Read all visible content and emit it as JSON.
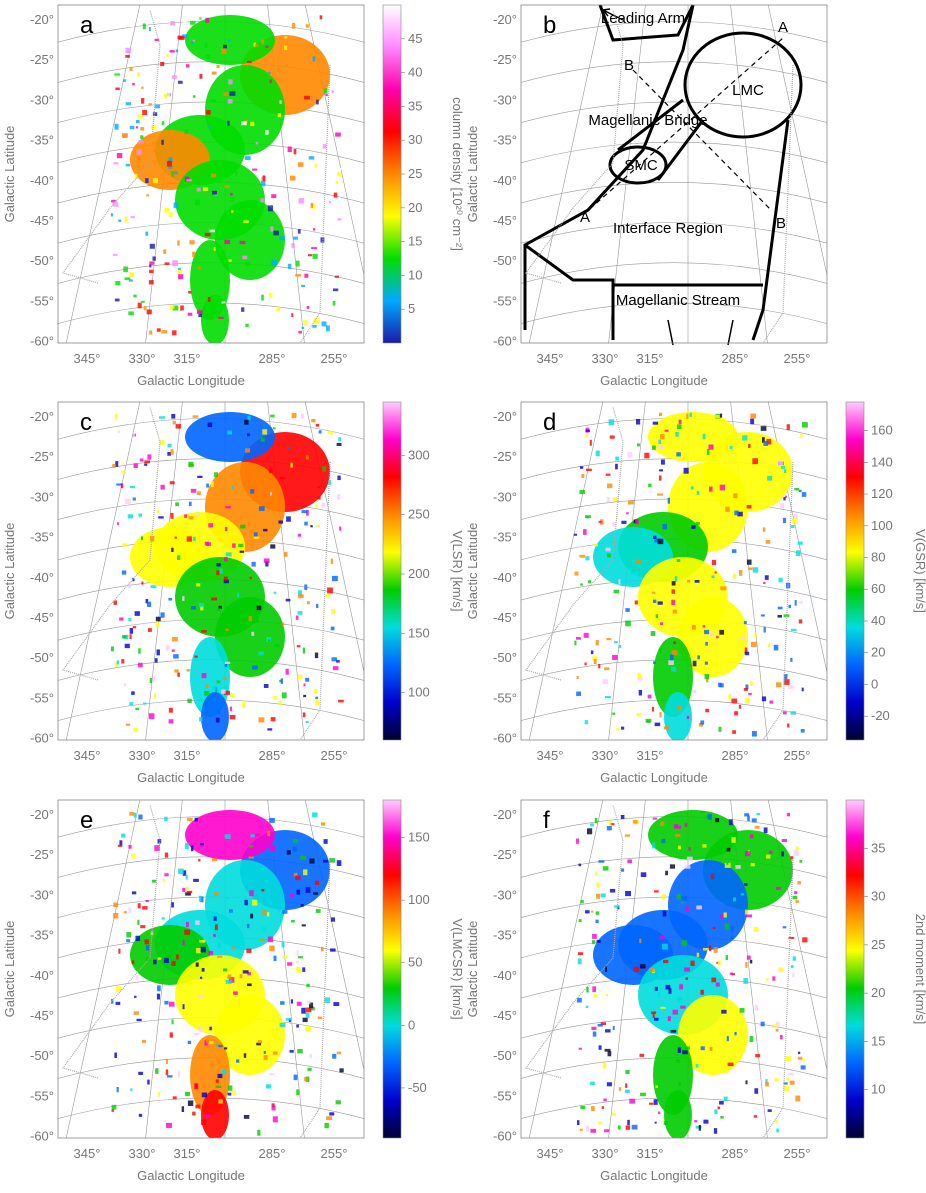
{
  "figure": {
    "x_axis_label": "Galactic Longitude",
    "y_axis_label": "Galactic Latitude",
    "lon_ticks": [
      "345°",
      "330°",
      "315°",
      "285°",
      "255°"
    ],
    "lat_ticks": [
      "-20°",
      "-25°",
      "-30°",
      "-35°",
      "-40°",
      "-45°",
      "-50°",
      "-55°",
      "-60°"
    ]
  },
  "chart_data": [
    {
      "type": "heatmap",
      "panel_label": "a",
      "quantity": "column density",
      "colorbar_label": "column density [10²⁰ cm⁻²]",
      "colorbar_ticks": [
        5,
        10,
        15,
        20,
        25,
        30,
        35,
        40,
        45
      ],
      "colorbar_range": [
        0,
        50
      ],
      "colorscale": [
        "#1a1aa8",
        "#00aaff",
        "#00dd00",
        "#ffff00",
        "#ff8800",
        "#ff0000",
        "#ff00aa",
        "#ff88ff",
        "#ffffff"
      ]
    },
    {
      "type": "diagram",
      "panel_label": "b",
      "regions": [
        "Leading Arm",
        "LMC",
        "Magellanic Bridge",
        "SMC",
        "Interface Region",
        "Magellanic Stream"
      ],
      "cut_labels": [
        "A",
        "B",
        "B",
        "A"
      ]
    },
    {
      "type": "heatmap",
      "panel_label": "c",
      "quantity": "V(LSR)",
      "colorbar_label": "V(LSR) [km/s]",
      "colorbar_ticks": [
        100,
        150,
        200,
        250,
        300
      ],
      "colorbar_range": [
        60,
        345
      ],
      "colorscale": [
        "#000030",
        "#0000cc",
        "#0066ff",
        "#00dddd",
        "#00cc00",
        "#ffff00",
        "#ff8800",
        "#ff0000",
        "#ff00cc",
        "#ffccff"
      ]
    },
    {
      "type": "heatmap",
      "panel_label": "d",
      "quantity": "V(GSR)",
      "colorbar_label": "V(GSR) [km/s]",
      "colorbar_ticks": [
        -20,
        0,
        20,
        40,
        60,
        80,
        100,
        120,
        140,
        160
      ],
      "colorbar_range": [
        -35,
        178
      ],
      "colorscale": [
        "#000030",
        "#0000cc",
        "#0066ff",
        "#00dddd",
        "#00cc00",
        "#ffff00",
        "#ff8800",
        "#ff0000",
        "#ff00cc",
        "#ffccff"
      ]
    },
    {
      "type": "heatmap",
      "panel_label": "e",
      "quantity": "V(LMCSR)",
      "colorbar_label": "V(LMCSR) [km/s]",
      "colorbar_ticks": [
        -50,
        0,
        50,
        100,
        150
      ],
      "colorbar_range": [
        -90,
        180
      ],
      "colorscale": [
        "#000030",
        "#0000cc",
        "#0066ff",
        "#00dddd",
        "#00cc00",
        "#ffff00",
        "#ff8800",
        "#ff0000",
        "#ff00cc",
        "#ffccff"
      ]
    },
    {
      "type": "heatmap",
      "panel_label": "f",
      "quantity": "2nd moment",
      "colorbar_label": "2nd moment [km/s]",
      "colorbar_ticks": [
        10,
        15,
        20,
        25,
        30,
        35
      ],
      "colorbar_range": [
        5,
        40
      ],
      "colorscale": [
        "#000030",
        "#0000cc",
        "#0066ff",
        "#00dddd",
        "#00cc00",
        "#ffff00",
        "#ff8800",
        "#ff0000",
        "#ff00cc",
        "#ffccff"
      ]
    }
  ]
}
